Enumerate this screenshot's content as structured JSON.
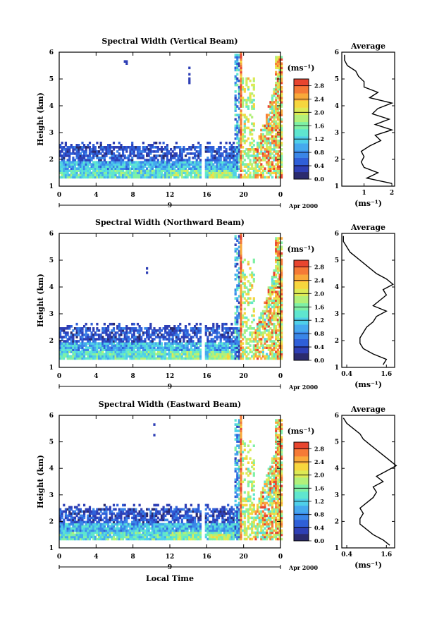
{
  "figure": {
    "xlabel": "Local Time",
    "date_label": "Apr 2000",
    "day_label": "9",
    "colorbar_unit": "(ms⁻¹)",
    "colorbar_ticks": [
      "0.0",
      "0.4",
      "0.8",
      "1.2",
      "1.6",
      "2.0",
      "2.4",
      "2.8"
    ],
    "avg_title": "Average",
    "avg_unit": "(ms⁻¹)",
    "ylabel": "Height (km)",
    "colorscale": [
      "#2b2b6e",
      "#2e3fb5",
      "#2f5fd8",
      "#3a86e8",
      "#45a9ee",
      "#4fcfe9",
      "#5fe6cf",
      "#7ff0a5",
      "#b2f07a",
      "#ddea55",
      "#f6d63e",
      "#f9a93a",
      "#f57a36",
      "#e8452f"
    ]
  },
  "chart_data": [
    {
      "type": "heatmap",
      "title": "Spectral Width (Vertical Beam)",
      "x_ticks": [
        "0",
        "4",
        "8",
        "12",
        "16",
        "20",
        "0"
      ],
      "y_ticks": [
        "1",
        "2",
        "3",
        "4",
        "5",
        "6"
      ],
      "xlim": [
        0,
        24
      ],
      "ylim": [
        1,
        6
      ],
      "colorbar_range": [
        0,
        3.0
      ],
      "average_profile": {
        "x_ticks": [
          "1",
          "2"
        ],
        "xlim": [
          0.2,
          2.1
        ],
        "heights": [
          1.1,
          1.3,
          1.5,
          1.7,
          1.9,
          2.1,
          2.3,
          2.5,
          2.7,
          2.9,
          3.1,
          3.3,
          3.5,
          3.7,
          3.9,
          4.1,
          4.3,
          4.5,
          4.7,
          4.9,
          5.1,
          5.3,
          5.5,
          5.7,
          5.9
        ],
        "values": [
          2.0,
          1.1,
          1.5,
          1.0,
          0.9,
          1.0,
          0.9,
          1.2,
          1.6,
          1.4,
          2.0,
          1.4,
          1.9,
          1.3,
          1.5,
          2.0,
          1.2,
          1.5,
          1.0,
          1.0,
          0.8,
          0.7,
          0.4,
          0.3,
          0.3
        ]
      }
    },
    {
      "type": "heatmap",
      "title": "Spectral Width (Northward Beam)",
      "x_ticks": [
        "0",
        "4",
        "8",
        "12",
        "16",
        "20",
        "0"
      ],
      "y_ticks": [
        "1",
        "2",
        "3",
        "4",
        "5",
        "6"
      ],
      "xlim": [
        0,
        24
      ],
      "ylim": [
        1,
        6
      ],
      "colorbar_range": [
        0,
        3.0
      ],
      "average_profile": {
        "x_ticks": [
          "0.4",
          "1.6"
        ],
        "xlim": [
          0.25,
          1.85
        ],
        "heights": [
          1.1,
          1.3,
          1.5,
          1.7,
          1.9,
          2.1,
          2.3,
          2.5,
          2.7,
          2.9,
          3.1,
          3.3,
          3.5,
          3.7,
          3.9,
          4.1,
          4.3,
          4.5,
          4.7,
          4.9,
          5.1,
          5.3,
          5.5,
          5.7,
          5.9
        ],
        "values": [
          1.5,
          1.6,
          1.2,
          0.9,
          0.8,
          0.8,
          0.9,
          1.0,
          1.2,
          1.3,
          1.6,
          1.2,
          1.4,
          1.6,
          1.5,
          1.8,
          1.6,
          1.3,
          1.1,
          0.9,
          0.7,
          0.5,
          0.4,
          0.3,
          0.3
        ]
      }
    },
    {
      "type": "heatmap",
      "title": "Spectral Width (Eastward Beam)",
      "x_ticks": [
        "0",
        "4",
        "8",
        "12",
        "16",
        "20",
        "0"
      ],
      "y_ticks": [
        "1",
        "2",
        "3",
        "4",
        "5",
        "6"
      ],
      "xlim": [
        0,
        24
      ],
      "ylim": [
        1,
        6
      ],
      "colorbar_range": [
        0,
        3.0
      ],
      "average_profile": {
        "x_ticks": [
          "0.4",
          "1.6"
        ],
        "xlim": [
          0.25,
          1.85
        ],
        "heights": [
          1.1,
          1.3,
          1.5,
          1.7,
          1.9,
          2.1,
          2.3,
          2.5,
          2.7,
          2.9,
          3.1,
          3.3,
          3.5,
          3.7,
          3.9,
          4.1,
          4.3,
          4.5,
          4.7,
          4.9,
          5.1,
          5.3,
          5.5,
          5.7,
          5.9
        ],
        "values": [
          1.7,
          1.5,
          1.2,
          1.0,
          0.8,
          0.8,
          0.9,
          0.8,
          1.0,
          1.2,
          1.3,
          1.2,
          1.5,
          1.3,
          1.6,
          1.9,
          1.7,
          1.5,
          1.3,
          1.1,
          0.9,
          0.8,
          0.6,
          0.4,
          0.3
        ]
      }
    }
  ]
}
